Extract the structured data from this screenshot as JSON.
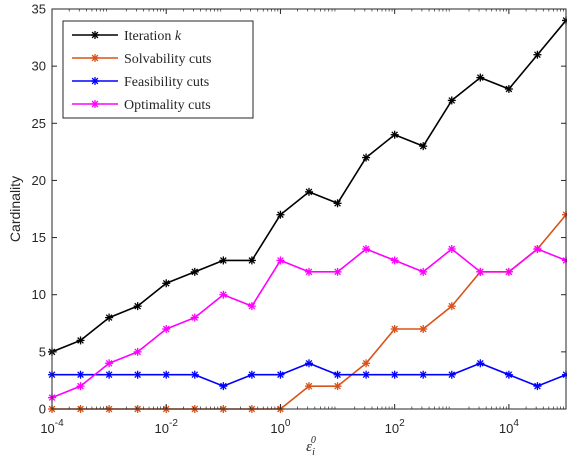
{
  "chart_data": {
    "type": "line",
    "xscale": "log",
    "xlabel_base": "ε",
    "xlabel_sub": "i",
    "xlabel_sup": "0",
    "ylabel": "Cardinality",
    "xlim": [
      0.0001,
      100000
    ],
    "ylim": [
      0,
      35
    ],
    "x": [
      0.0001,
      0.000316,
      0.001,
      0.00316,
      0.01,
      0.0316,
      0.1,
      0.316,
      1,
      3.16,
      10,
      31.6,
      100,
      316,
      1000,
      3160,
      10000,
      31600,
      100000
    ],
    "xticks": [
      {
        "value": 0.0001,
        "base": "10",
        "exp": "-4"
      },
      {
        "value": 0.01,
        "base": "10",
        "exp": "-2"
      },
      {
        "value": 1,
        "base": "10",
        "exp": "0"
      },
      {
        "value": 100,
        "base": "10",
        "exp": "2"
      },
      {
        "value": 10000,
        "base": "10",
        "exp": "4"
      }
    ],
    "yticks": [
      {
        "value": 0,
        "label": "0"
      },
      {
        "value": 5,
        "label": "5"
      },
      {
        "value": 10,
        "label": "10"
      },
      {
        "value": 15,
        "label": "15"
      },
      {
        "value": 20,
        "label": "20"
      },
      {
        "value": 25,
        "label": "25"
      },
      {
        "value": 30,
        "label": "30"
      },
      {
        "value": 35,
        "label": "35"
      }
    ],
    "legend_position": "top-left",
    "grid": false,
    "series": [
      {
        "name": "Iteration",
        "name_italic": "k",
        "color": "#000000",
        "marker": "asterisk",
        "values": [
          5,
          6,
          8,
          9,
          11,
          12,
          13,
          13,
          17,
          19,
          18,
          22,
          24,
          23,
          27,
          29,
          28,
          31,
          34
        ]
      },
      {
        "name": "Solvability cuts",
        "color": "#D95319",
        "marker": "asterisk",
        "values": [
          0,
          0,
          0,
          0,
          0,
          0,
          0,
          0,
          0,
          2,
          2,
          4,
          7,
          7,
          9,
          12,
          12,
          14,
          17
        ]
      },
      {
        "name": "Feasibility cuts",
        "color": "#0000FF",
        "marker": "asterisk",
        "values": [
          3,
          3,
          3,
          3,
          3,
          3,
          2,
          3,
          3,
          4,
          3,
          3,
          3,
          3,
          3,
          4,
          3,
          2,
          3
        ]
      },
      {
        "name": "Optimality cuts",
        "color": "#FF00FF",
        "marker": "asterisk",
        "values": [
          1,
          2,
          4,
          5,
          7,
          8,
          10,
          9,
          13,
          12,
          12,
          14,
          13,
          12,
          14,
          12,
          12,
          14,
          13
        ]
      }
    ]
  }
}
